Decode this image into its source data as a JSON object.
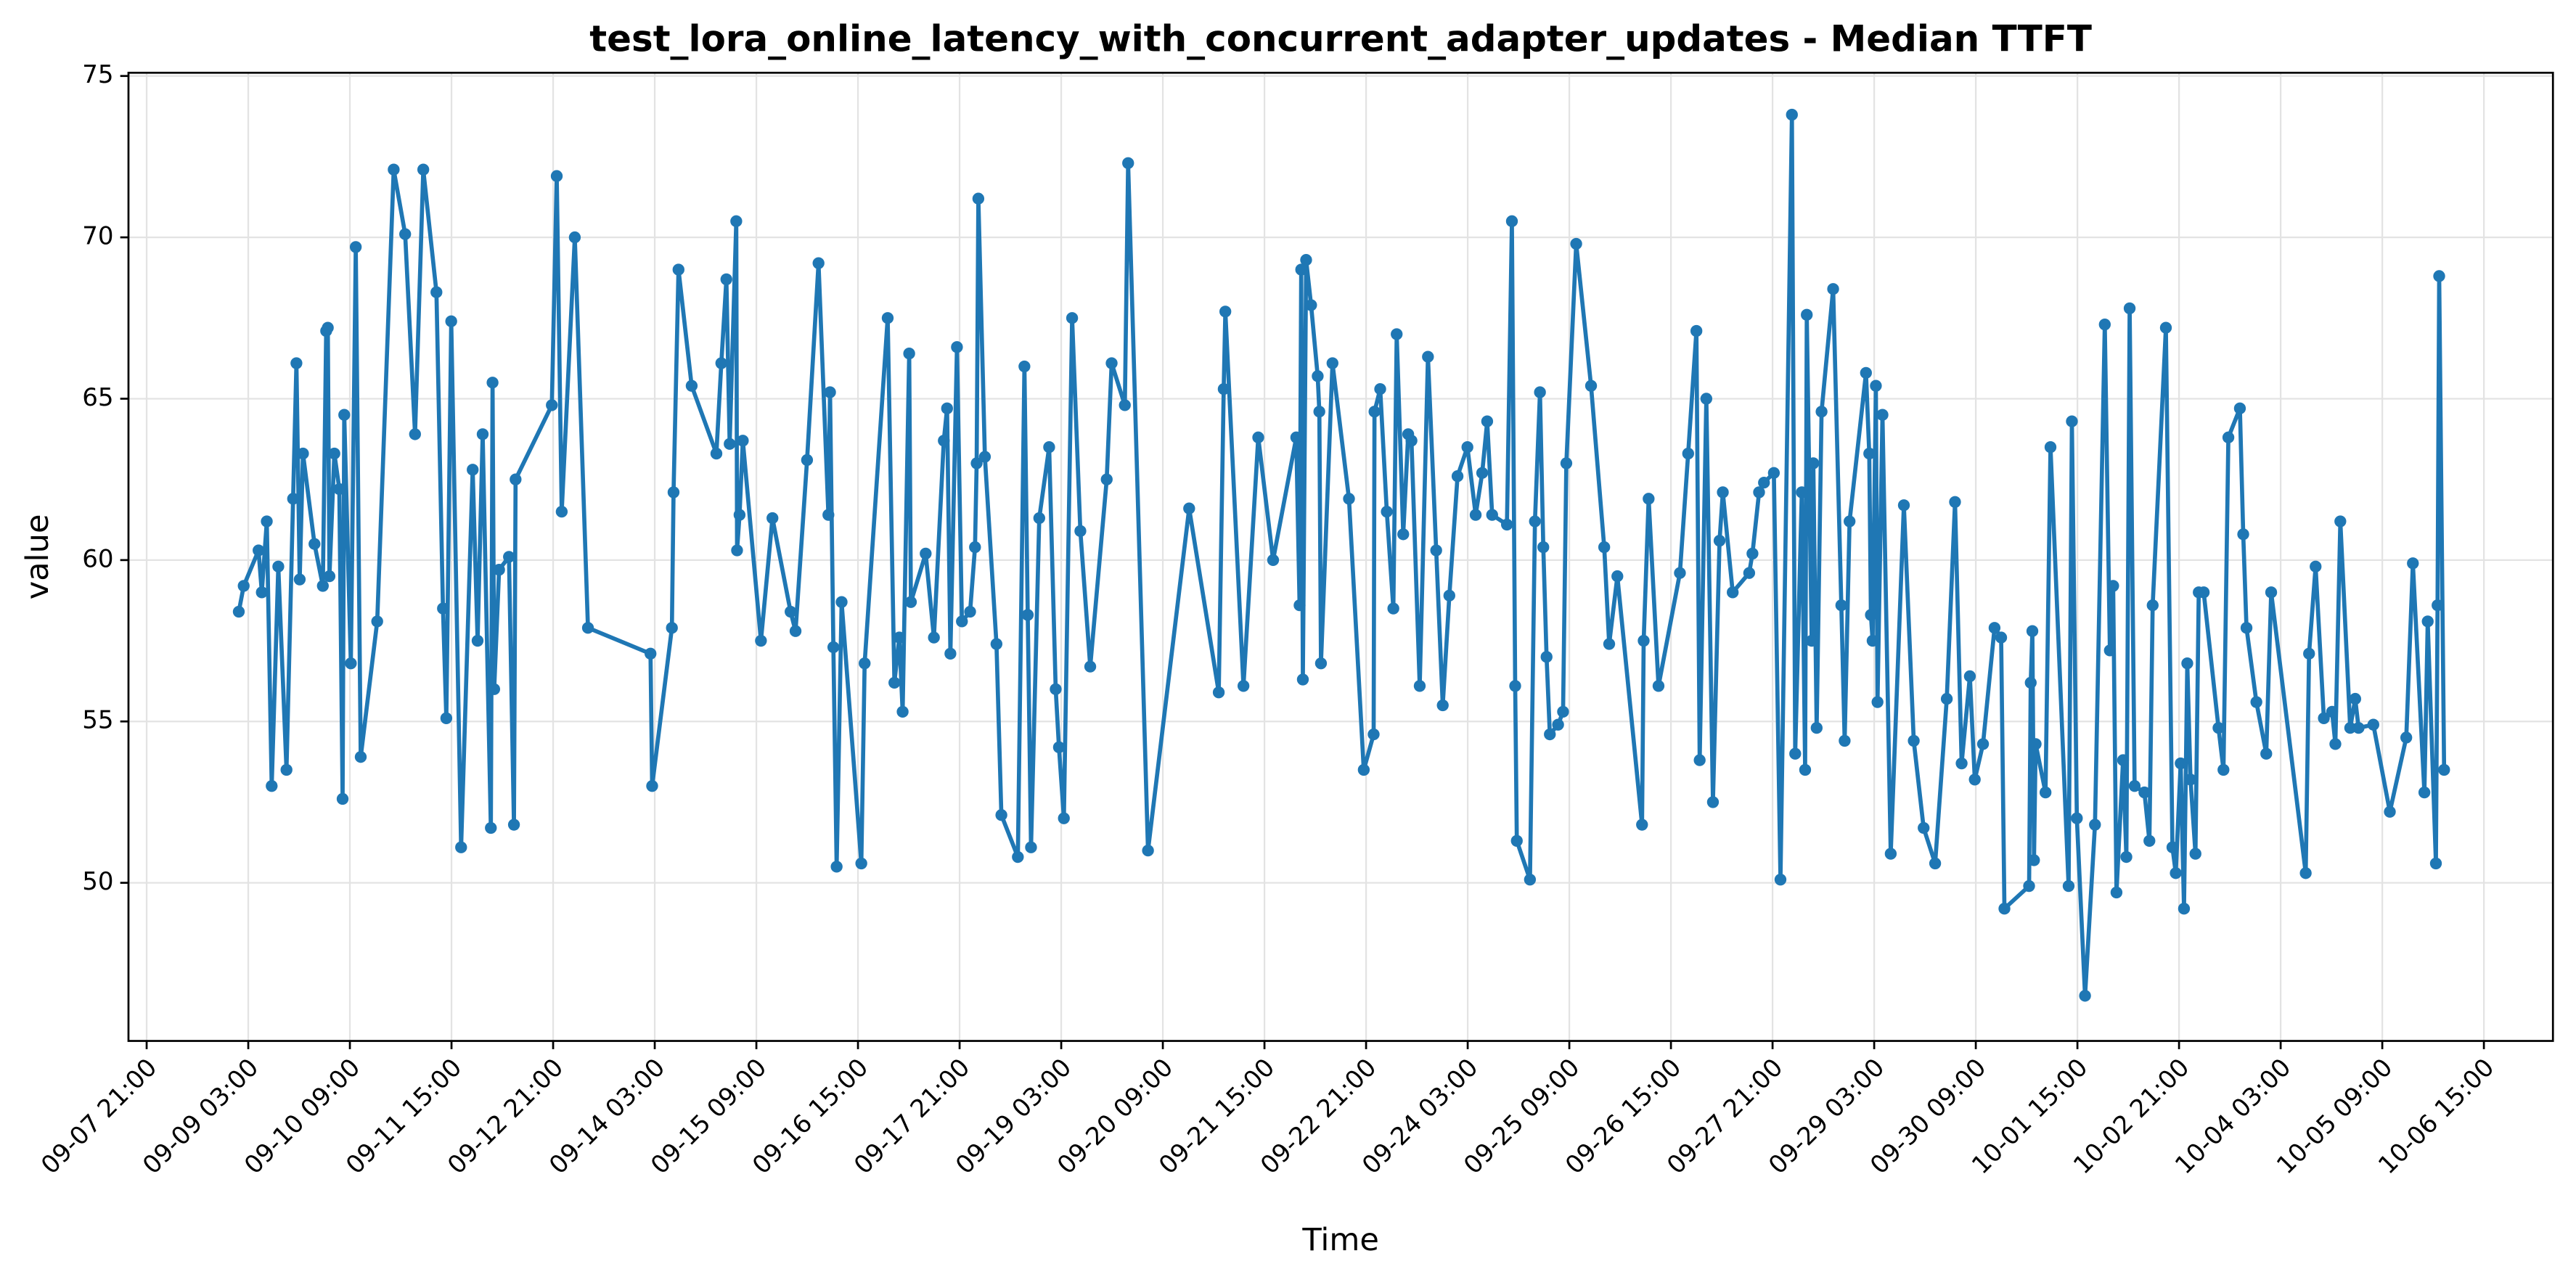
{
  "chart_data": {
    "type": "line",
    "title": "test_lora_online_latency_with_concurrent_adapter_updates - Median TTFT",
    "x_label": "Time",
    "y_label": "value",
    "color": "#1f77b4",
    "grid": true,
    "xlim": [
      "09-07 15:38",
      "10-07 11:23"
    ],
    "xticks": [
      "09-07 21:00",
      "09-09 03:00",
      "09-10 09:00",
      "09-11 15:00",
      "09-12 21:00",
      "09-14 03:00",
      "09-15 09:00",
      "09-16 15:00",
      "09-17 21:00",
      "09-19 03:00",
      "09-20 09:00",
      "09-21 15:00",
      "09-22 21:00",
      "09-24 03:00",
      "09-25 09:00",
      "09-26 15:00",
      "09-27 21:00",
      "09-29 03:00",
      "09-30 09:00",
      "10-01 15:00",
      "10-02 21:00",
      "10-04 03:00",
      "10-05 09:00",
      "10-06 15:00"
    ],
    "ylim": [
      45.1,
      75.1
    ],
    "yticks": [
      50,
      55,
      60,
      65,
      70,
      75
    ],
    "x": [
      "09-09 00:12",
      "09-09 01:39",
      "09-09 06:02",
      "09-09 07:00",
      "09-09 08:28",
      "09-09 09:55",
      "09-09 11:52",
      "09-09 14:17",
      "09-09 16:14",
      "09-09 17:13",
      "09-09 18:11",
      "09-09 19:09",
      "09-09 22:33",
      "09-10 01:01",
      "09-10 02:00",
      "09-10 02:29",
      "09-10 02:58",
      "09-10 04:25",
      "09-10 05:53",
      "09-10 06:51",
      "09-10 07:20",
      "09-10 09:17",
      "09-10 10:44",
      "09-10 12:12",
      "09-10 17:04",
      "09-10 21:56",
      "09-11 01:19",
      "09-11 04:14",
      "09-11 06:40",
      "09-11 10:33",
      "09-11 12:29",
      "09-11 13:28",
      "09-11 14:55",
      "09-11 17:50",
      "09-11 21:15",
      "09-11 22:42",
      "09-12 00:12",
      "09-12 02:37",
      "09-12 03:07",
      "09-12 03:36",
      "09-12 05:03",
      "09-12 07:58",
      "09-12 09:26",
      "09-12 09:55",
      "09-12 20:37",
      "09-12 22:04",
      "09-12 23:32",
      "09-13 03:24",
      "09-13 07:17",
      "09-14 01:45",
      "09-14 02:14",
      "09-14 08:04",
      "09-14 08:33",
      "09-14 10:01",
      "09-14 13:54",
      "09-14 21:12",
      "09-14 22:39",
      "09-15 00:09",
      "09-15 01:07",
      "09-15 03:04",
      "09-15 03:18",
      "09-15 04:02",
      "09-15 05:00",
      "09-15 10:21",
      "09-15 13:45",
      "09-15 19:06",
      "09-15 20:34",
      "09-15 23:58",
      "09-16 03:21",
      "09-16 06:16",
      "09-16 06:45",
      "09-16 07:44",
      "09-16 08:42",
      "09-16 10:10",
      "09-16 15:59",
      "09-16 16:58",
      "09-16 23:46",
      "09-17 01:45",
      "09-17 03:12",
      "09-17 04:11",
      "09-17 06:07",
      "09-17 06:37",
      "09-17 10:59",
      "09-17 13:25",
      "09-17 16:20",
      "09-17 17:18",
      "09-17 18:17",
      "09-17 20:13",
      "09-17 21:41",
      "09-18 00:06",
      "09-18 01:33",
      "09-18 02:02",
      "09-18 02:32",
      "09-18 04:28",
      "09-18 07:53",
      "09-18 09:20",
      "09-18 14:12",
      "09-18 16:08",
      "09-18 17:07",
      "09-18 18:05",
      "09-18 20:31",
      "09-18 23:26",
      "09-19 01:22",
      "09-19 02:20",
      "09-19 03:47",
      "09-19 06:13",
      "09-19 08:39",
      "09-19 11:34",
      "09-19 16:26",
      "09-19 17:53",
      "09-19 21:47",
      "09-19 22:45",
      "09-20 04:37",
      "09-20 16:46",
      "09-21 01:30",
      "09-21 02:58",
      "09-21 03:27",
      "09-21 08:48",
      "09-21 13:10",
      "09-21 17:33",
      "09-22 00:23",
      "09-22 01:22",
      "09-22 01:51",
      "09-22 02:20",
      "09-22 03:18",
      "09-22 04:46",
      "09-22 06:43",
      "09-22 07:12",
      "09-22 07:41",
      "09-22 11:05",
      "09-22 15:57",
      "09-22 20:19",
      "09-22 23:14",
      "09-22 23:29",
      "09-23 01:10",
      "09-23 03:07",
      "09-23 05:03",
      "09-23 06:02",
      "09-23 07:58",
      "09-23 09:26",
      "09-23 10:24",
      "09-23 12:50",
      "09-23 15:16",
      "09-23 17:42",
      "09-23 19:38",
      "09-23 21:35",
      "09-24 00:00",
      "09-24 02:55",
      "09-24 05:21",
      "09-24 07:17",
      "09-24 08:45",
      "09-24 10:13",
      "09-24 14:35",
      "09-24 16:03",
      "09-24 17:01",
      "09-24 17:30",
      "09-24 21:23",
      "09-24 22:51",
      "09-25 00:20",
      "09-25 01:19",
      "09-25 02:17",
      "09-25 03:15",
      "09-25 05:41",
      "09-25 07:09",
      "09-25 08:07",
      "09-25 11:02",
      "09-25 15:25",
      "09-25 19:18",
      "09-25 20:46",
      "09-25 23:11",
      "09-26 06:28",
      "09-26 06:57",
      "09-26 08:25",
      "09-26 11:20",
      "09-26 17:39",
      "09-26 20:05",
      "09-26 22:31",
      "09-26 23:29",
      "09-27 01:27",
      "09-27 03:24",
      "09-27 05:21",
      "09-27 06:19",
      "09-27 09:14",
      "09-27 14:06",
      "09-27 15:04",
      "09-27 17:01",
      "09-27 18:28",
      "09-27 21:23",
      "09-27 23:20",
      "09-28 02:43",
      "09-28 03:41",
      "09-28 05:38",
      "09-28 06:37",
      "09-28 07:06",
      "09-28 08:33",
      "09-28 09:02",
      "09-28 10:01",
      "09-28 11:28",
      "09-28 14:53",
      "09-28 17:18",
      "09-28 18:17",
      "09-28 19:44",
      "09-29 00:35",
      "09-29 01:33",
      "09-29 02:02",
      "09-29 02:32",
      "09-29 03:30",
      "09-29 03:59",
      "09-29 05:27",
      "09-29 07:53",
      "09-29 11:46",
      "09-29 14:41",
      "09-29 17:36",
      "09-29 21:00",
      "09-30 00:26",
      "09-30 02:52",
      "09-30 04:49",
      "09-30 07:15",
      "09-30 08:42",
      "09-30 11:08",
      "09-30 14:32",
      "09-30 16:29",
      "09-30 17:27",
      "10-01 00:44",
      "10-01 01:13",
      "10-01 01:42",
      "10-01 02:11",
      "10-01 02:40",
      "10-01 05:35",
      "10-01 07:03",
      "10-01 12:24",
      "10-01 13:22",
      "10-01 14:50",
      "10-01 17:15",
      "10-01 20:11",
      "10-01 23:05",
      "10-02 00:35",
      "10-02 01:33",
      "10-02 02:32",
      "10-02 04:28",
      "10-02 05:27",
      "10-02 06:25",
      "10-02 07:53",
      "10-02 10:47",
      "10-02 12:15",
      "10-02 13:13",
      "10-02 17:07",
      "10-02 19:03",
      "10-02 20:02",
      "10-02 21:29",
      "10-02 22:28",
      "10-02 23:26",
      "10-03 00:23",
      "10-03 01:51",
      "10-03 02:49",
      "10-03 04:17",
      "10-03 08:39",
      "10-03 10:07",
      "10-03 11:34",
      "10-03 14:58",
      "10-03 15:57",
      "10-03 16:55",
      "10-03 19:50",
      "10-03 22:45",
      "10-04 00:12",
      "10-04 10:24",
      "10-04 11:23",
      "10-04 13:19",
      "10-04 15:45",
      "10-04 18:11",
      "10-04 19:09",
      "10-04 20:37",
      "10-04 23:32",
      "10-05 01:01",
      "10-05 02:00",
      "10-05 06:22",
      "10-05 11:14",
      "10-05 16:05",
      "10-05 18:02",
      "10-05 21:26",
      "10-05 22:25",
      "10-06 00:50",
      "10-06 01:19",
      "10-06 01:48",
      "10-06 03:15"
    ],
    "values": [
      58.4,
      59.2,
      60.3,
      59.0,
      61.2,
      53.0,
      59.8,
      53.5,
      61.9,
      66.1,
      59.4,
      63.3,
      60.5,
      59.2,
      67.1,
      67.2,
      59.5,
      63.3,
      62.2,
      52.6,
      64.5,
      56.8,
      69.7,
      53.9,
      58.1,
      72.1,
      70.1,
      63.9,
      72.1,
      68.3,
      58.5,
      55.1,
      67.4,
      51.1,
      62.8,
      57.5,
      63.9,
      51.7,
      65.5,
      56.0,
      59.7,
      60.1,
      51.8,
      62.5,
      64.8,
      71.9,
      61.5,
      70.0,
      57.9,
      57.1,
      53.0,
      57.9,
      62.1,
      69.0,
      65.4,
      63.3,
      66.1,
      68.7,
      63.6,
      70.5,
      60.3,
      61.4,
      63.7,
      57.5,
      61.3,
      58.4,
      57.8,
      63.1,
      69.2,
      61.4,
      65.2,
      57.3,
      50.5,
      58.7,
      50.6,
      56.8,
      67.5,
      56.2,
      57.6,
      55.3,
      66.4,
      58.7,
      60.2,
      57.6,
      63.7,
      64.7,
      57.1,
      66.6,
      58.1,
      58.4,
      60.4,
      63.0,
      71.2,
      63.2,
      57.4,
      52.1,
      50.8,
      66.0,
      58.3,
      51.1,
      61.3,
      63.5,
      56.0,
      54.2,
      52.0,
      67.5,
      60.9,
      56.7,
      62.5,
      66.1,
      64.8,
      72.3,
      51.0,
      61.6,
      55.9,
      65.3,
      67.7,
      56.1,
      63.8,
      60.0,
      63.8,
      58.6,
      69.0,
      56.3,
      69.3,
      67.9,
      65.7,
      64.6,
      56.8,
      66.1,
      61.9,
      53.5,
      54.6,
      64.6,
      65.3,
      61.5,
      58.5,
      67.0,
      60.8,
      63.9,
      63.7,
      56.1,
      66.3,
      60.3,
      55.5,
      58.9,
      62.6,
      63.5,
      61.4,
      62.7,
      64.3,
      61.4,
      61.1,
      70.5,
      56.1,
      51.3,
      50.1,
      61.2,
      65.2,
      60.4,
      57.0,
      54.6,
      54.9,
      55.3,
      63.0,
      69.8,
      65.4,
      60.4,
      57.4,
      59.5,
      51.8,
      57.5,
      61.9,
      56.1,
      59.6,
      63.3,
      67.1,
      53.8,
      65.0,
      52.5,
      60.6,
      62.1,
      59.0,
      59.6,
      60.2,
      62.1,
      62.4,
      62.7,
      50.1,
      73.8,
      54.0,
      62.1,
      53.5,
      67.6,
      57.5,
      63.0,
      54.8,
      64.6,
      68.4,
      58.6,
      54.4,
      61.2,
      65.8,
      63.3,
      58.3,
      57.5,
      65.4,
      55.6,
      64.5,
      50.9,
      61.7,
      54.4,
      51.7,
      50.6,
      55.7,
      61.8,
      53.7,
      56.4,
      53.2,
      54.3,
      57.9,
      57.6,
      49.2,
      49.9,
      56.2,
      57.8,
      50.7,
      54.3,
      52.8,
      63.5,
      49.9,
      64.3,
      52.0,
      46.5,
      51.8,
      67.3,
      57.2,
      59.2,
      49.7,
      53.8,
      50.8,
      67.8,
      53.0,
      52.8,
      51.3,
      58.6,
      67.2,
      51.1,
      50.3,
      53.7,
      49.2,
      56.8,
      53.2,
      50.9,
      59.0,
      59.0,
      54.8,
      53.5,
      63.8,
      64.7,
      60.8,
      57.9,
      55.6,
      54.0,
      59.0,
      50.3,
      57.1,
      59.8,
      55.1,
      55.3,
      54.3,
      61.2,
      54.8,
      55.7,
      54.8,
      54.9,
      52.2,
      54.5,
      59.9,
      52.8,
      58.1,
      50.6,
      58.6,
      68.8,
      53.5
    ]
  }
}
